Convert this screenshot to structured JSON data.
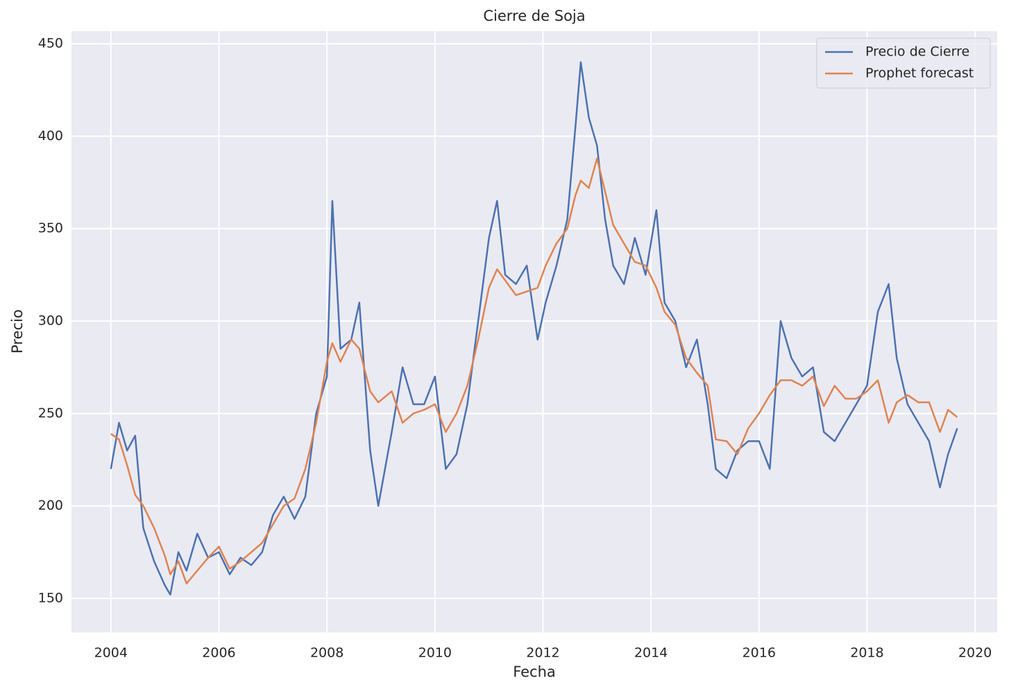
{
  "chart_data": {
    "type": "line",
    "title": "Cierre de Soja",
    "x_label": "Fecha",
    "y_label": "Precio",
    "x": [
      2004.0,
      2004.15,
      2004.3,
      2004.45,
      2004.6,
      2004.8,
      2005.0,
      2005.1,
      2005.25,
      2005.4,
      2005.6,
      2005.8,
      2006.0,
      2006.2,
      2006.4,
      2006.6,
      2006.8,
      2007.0,
      2007.2,
      2007.4,
      2007.6,
      2007.8,
      2008.0,
      2008.1,
      2008.25,
      2008.45,
      2008.6,
      2008.8,
      2008.95,
      2009.2,
      2009.4,
      2009.6,
      2009.8,
      2010.0,
      2010.2,
      2010.4,
      2010.6,
      2010.8,
      2011.0,
      2011.15,
      2011.3,
      2011.5,
      2011.7,
      2011.9,
      2012.05,
      2012.25,
      2012.45,
      2012.6,
      2012.7,
      2012.85,
      2013.0,
      2013.15,
      2013.3,
      2013.5,
      2013.7,
      2013.9,
      2014.1,
      2014.25,
      2014.45,
      2014.65,
      2014.85,
      2015.05,
      2015.2,
      2015.4,
      2015.6,
      2015.8,
      2016.0,
      2016.2,
      2016.4,
      2016.6,
      2016.8,
      2017.0,
      2017.2,
      2017.4,
      2017.6,
      2017.8,
      2018.0,
      2018.2,
      2018.4,
      2018.55,
      2018.75,
      2018.95,
      2019.15,
      2019.35,
      2019.5,
      2019.67
    ],
    "series": [
      {
        "name": "Precio de Cierre",
        "color": "#4c72b0",
        "values": [
          220,
          245,
          230,
          238,
          188,
          170,
          157,
          152,
          175,
          165,
          185,
          172,
          175,
          163,
          172,
          168,
          175,
          195,
          205,
          193,
          205,
          250,
          270,
          365,
          285,
          290,
          310,
          230,
          200,
          240,
          275,
          255,
          255,
          270,
          220,
          228,
          255,
          300,
          345,
          365,
          325,
          320,
          330,
          290,
          310,
          330,
          355,
          405,
          440,
          410,
          395,
          355,
          330,
          320,
          345,
          325,
          360,
          310,
          300,
          275,
          290,
          255,
          220,
          215,
          230,
          235,
          235,
          220,
          300,
          280,
          270,
          275,
          240,
          235,
          245,
          255,
          265,
          305,
          320,
          280,
          255,
          245,
          235,
          210,
          228,
          242
        ]
      },
      {
        "name": "Prophet forecast",
        "color": "#dd8452",
        "values": [
          239,
          236,
          222,
          206,
          200,
          188,
          173,
          163,
          170,
          158,
          165,
          172,
          178,
          166,
          170,
          175,
          180,
          190,
          200,
          204,
          220,
          245,
          278,
          288,
          278,
          290,
          285,
          262,
          256,
          262,
          245,
          250,
          252,
          255,
          240,
          250,
          265,
          290,
          318,
          328,
          322,
          314,
          316,
          318,
          330,
          342,
          350,
          368,
          376,
          372,
          388,
          370,
          352,
          342,
          332,
          330,
          318,
          305,
          298,
          280,
          272,
          265,
          236,
          235,
          228,
          242,
          250,
          260,
          268,
          268,
          265,
          270,
          254,
          265,
          258,
          258,
          262,
          268,
          245,
          256,
          260,
          256,
          256,
          240,
          252,
          248
        ]
      }
    ],
    "xlim": [
      2003.27,
      2020.41
    ],
    "xticks": [
      2004,
      2006,
      2008,
      2010,
      2012,
      2014,
      2016,
      2018,
      2020
    ],
    "ylim": [
      131.6,
      456.8
    ],
    "yticks": [
      150,
      200,
      250,
      300,
      350,
      400,
      450
    ],
    "grid": true,
    "legend": "upper right"
  }
}
